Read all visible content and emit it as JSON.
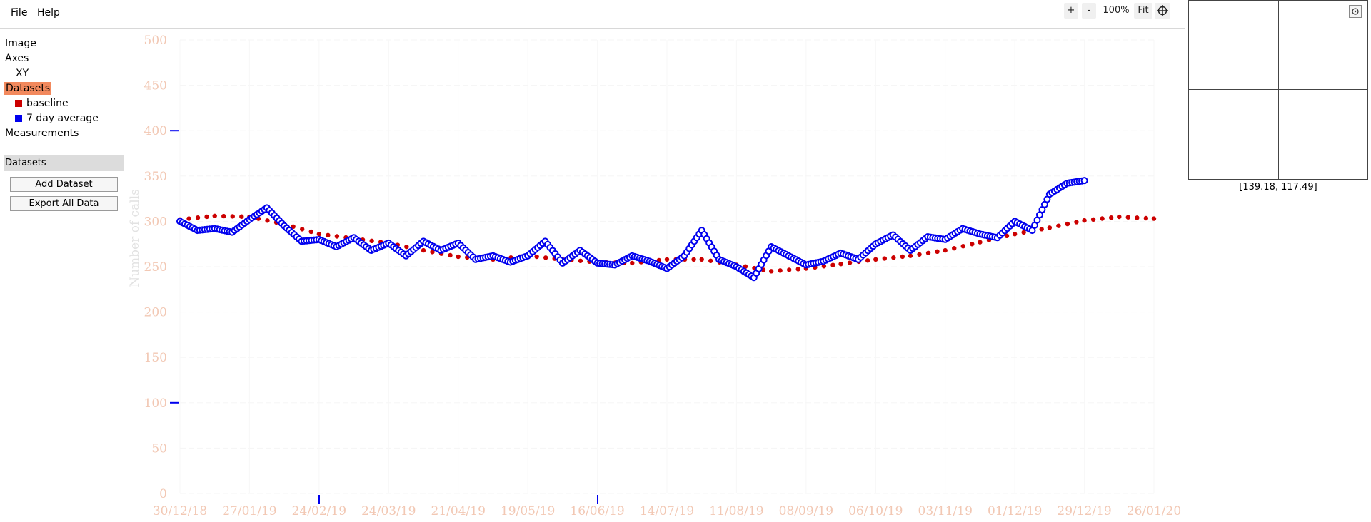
{
  "menu": {
    "file": "File",
    "help": "Help"
  },
  "toolbar": {
    "zoom_in": "+",
    "zoom_out": "-",
    "zoom_level": "100%",
    "fit": "Fit",
    "crosshair_icon": "crosshair-icon"
  },
  "sidebar": {
    "tree": {
      "image": "Image",
      "axes": "Axes",
      "xy": "XY",
      "datasets": "Datasets",
      "measurements": "Measurements"
    },
    "datasets": [
      {
        "name": "baseline",
        "color": "#cc0000"
      },
      {
        "name": "7 day average",
        "color": "#0000ee"
      }
    ],
    "panel_title": "Datasets",
    "add_button": "Add Dataset",
    "export_button": "Export All Data"
  },
  "magnifier": {
    "coordinates": "[139.18, 117.49]"
  },
  "chart_data": {
    "type": "scatter",
    "ylabel": "Number of calls",
    "ylim": [
      0,
      500
    ],
    "yticks": [
      "0",
      "50",
      "100",
      "150",
      "200",
      "250",
      "300",
      "350",
      "400",
      "450",
      "500"
    ],
    "xticks": [
      "30/12/18",
      "27/01/19",
      "24/02/19",
      "24/03/19",
      "21/04/19",
      "19/05/19",
      "16/06/19",
      "14/07/19",
      "11/08/19",
      "08/09/19",
      "06/10/19",
      "03/11/19",
      "01/12/19",
      "29/12/19",
      "26/01/20"
    ],
    "grid": true,
    "series": [
      {
        "name": "baseline",
        "color": "#cc0000",
        "x": [
          0,
          14,
          28,
          42,
          56,
          70,
          84,
          98,
          112,
          126,
          140,
          154,
          168,
          182,
          196,
          210,
          224,
          238,
          252,
          266,
          280,
          294,
          308,
          322,
          336,
          350,
          364,
          378,
          392
        ],
        "y": [
          302,
          306,
          305,
          297,
          286,
          281,
          276,
          268,
          261,
          258,
          262,
          258,
          255,
          254,
          258,
          258,
          252,
          245,
          248,
          253,
          258,
          262,
          268,
          277,
          286,
          293,
          301,
          305,
          303
        ]
      },
      {
        "name": "7 day average",
        "color": "#0000ee",
        "x": [
          0,
          7,
          14,
          21,
          28,
          35,
          42,
          49,
          56,
          63,
          70,
          77,
          84,
          91,
          98,
          105,
          112,
          119,
          126,
          133,
          140,
          147,
          154,
          161,
          168,
          175,
          182,
          189,
          196,
          203,
          210,
          217,
          224,
          231,
          238,
          245,
          252,
          259,
          266,
          273,
          280,
          287,
          294,
          301,
          308,
          315,
          322,
          329,
          336,
          343,
          350,
          357,
          364
        ],
        "y": [
          300,
          290,
          292,
          288,
          302,
          315,
          295,
          278,
          280,
          272,
          282,
          268,
          276,
          262,
          278,
          268,
          276,
          258,
          262,
          255,
          262,
          278,
          254,
          268,
          254,
          252,
          262,
          256,
          248,
          262,
          290,
          258,
          250,
          238,
          272,
          262,
          252,
          256,
          265,
          258,
          275,
          285,
          268,
          283,
          280,
          292,
          286,
          282,
          300,
          290,
          330,
          342,
          345
        ]
      }
    ]
  }
}
